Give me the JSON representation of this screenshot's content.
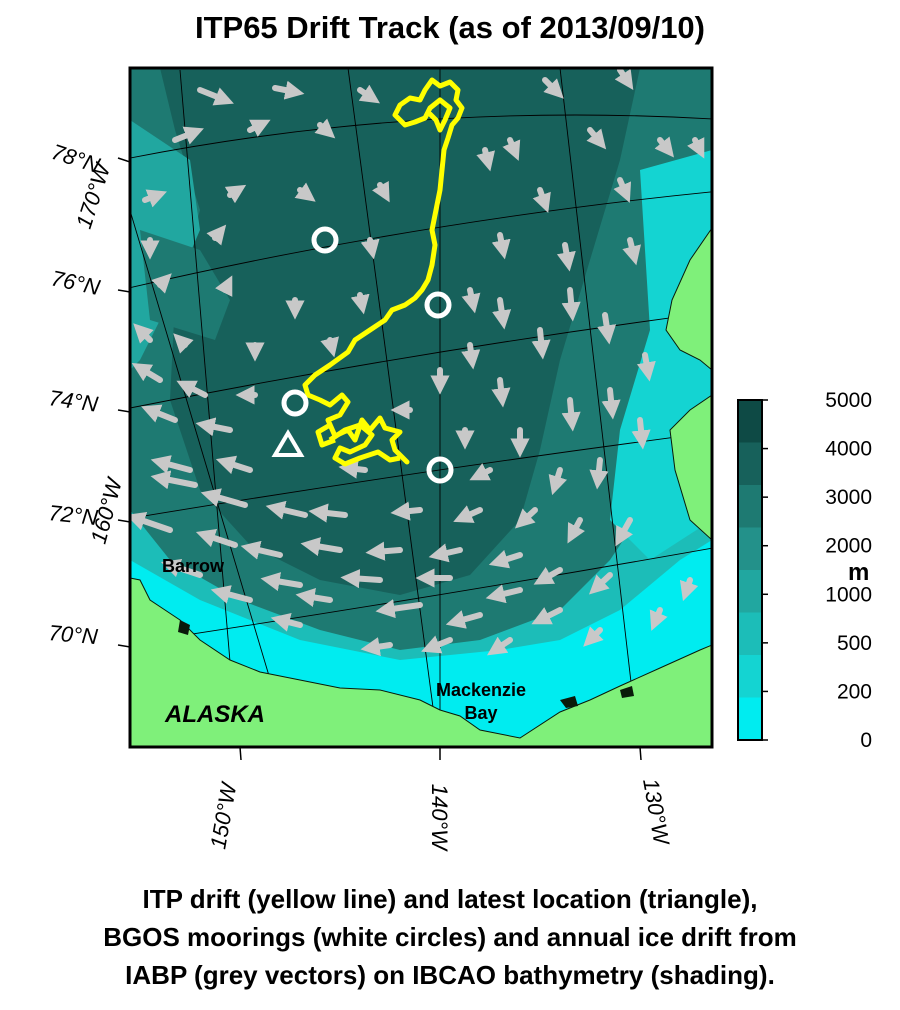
{
  "title": "ITP65 Drift Track (as of 2013/09/10)",
  "lat_labels": [
    "78°N",
    "76°N",
    "74°N",
    "72°N",
    "70°N"
  ],
  "lon_labels_left": [
    "170°W",
    "160°W"
  ],
  "lon_labels_bottom": [
    "150°W",
    "140°W",
    "130°W"
  ],
  "places": {
    "barrow": "Barrow",
    "mackenzie_line1": "Mackenzie",
    "mackenzie_line2": "Bay",
    "alaska": "ALASKA"
  },
  "colorbar": {
    "ticks": [
      "5000",
      "4000",
      "3000",
      "2000",
      "1000",
      "500",
      "200",
      "0"
    ],
    "unit": "m",
    "colors": [
      "#0e4a45",
      "#17615b",
      "#1e7a72",
      "#23918a",
      "#21a7a0",
      "#1cbdb8",
      "#14d4d2",
      "#00ecf0"
    ]
  },
  "colors": {
    "land": "#7ff07a",
    "track": "#ffff00",
    "vectors": "#c8c8c8",
    "moorings": "#ffffff"
  },
  "caption": {
    "line1": "ITP drift (yellow line) and latest location (triangle),",
    "line2": "BGOS moorings (white circles) and annual ice drift from",
    "line3": "IABP (grey vectors) on IBCAO bathymetry (shading)."
  }
}
